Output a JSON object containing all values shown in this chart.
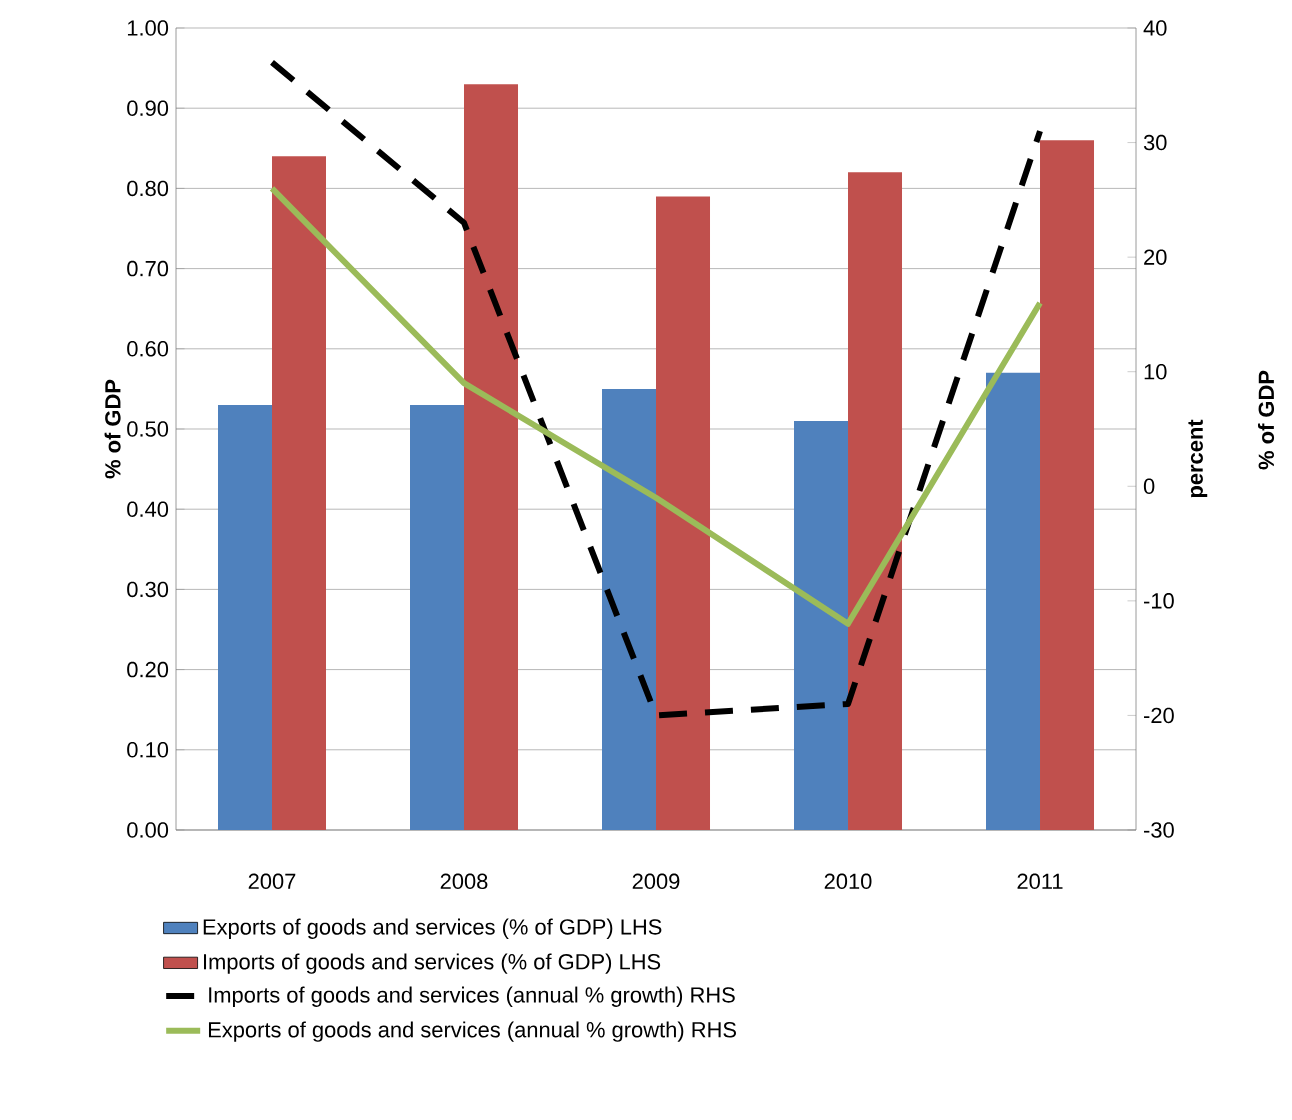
{
  "chart_data": {
    "type": "bar",
    "categories": [
      "2007",
      "2008",
      "2009",
      "2010",
      "2011"
    ],
    "ylabel": "% of GDP",
    "y2label": "percent",
    "annotations": [
      "% of GDP"
    ],
    "ylim": [
      0,
      1
    ],
    "yticks": [
      {
        "value": 0,
        "label": "0.00"
      },
      {
        "value": 0.1,
        "label": "0.10"
      },
      {
        "value": 0.2,
        "label": "0.20"
      },
      {
        "value": 0.3,
        "label": "0.30"
      },
      {
        "value": 0.4,
        "label": "0.40"
      },
      {
        "value": 0.5,
        "label": "0.50"
      },
      {
        "value": 0.6,
        "label": "0.60"
      },
      {
        "value": 0.7,
        "label": "0.70"
      },
      {
        "value": 0.8,
        "label": "0.80"
      },
      {
        "value": 0.9,
        "label": "0.90"
      },
      {
        "value": 1,
        "label": "1.00"
      }
    ],
    "y2lim": [
      -30,
      40
    ],
    "y2ticks": [
      -30,
      -20,
      -10,
      0,
      10,
      20,
      30,
      40
    ],
    "grid": "y",
    "legend": "bottom",
    "series": [
      {
        "name": "Exports of goods and services (% of GDP) LHS",
        "color": "#4f81bd",
        "values": [
          0.53,
          0.53,
          0.55,
          0.51,
          0.57
        ]
      },
      {
        "name": "Imports of goods and services (% of GDP) LHS",
        "color": "#c0504d",
        "values": [
          0.84,
          0.93,
          0.79,
          0.82,
          0.86
        ]
      },
      {
        "name": "Imports of goods and services (annual % growth) RHS",
        "type": "line",
        "axis": "y2",
        "line_style": "dashed",
        "color": "#000000",
        "values": [
          37,
          23,
          -20,
          -19,
          31
        ]
      },
      {
        "name": "Exports of goods and services (annual % growth) RHS",
        "type": "line",
        "axis": "y2",
        "line_style": "solid",
        "color": "#9bbb59",
        "values": [
          26,
          9,
          -1,
          -12,
          16
        ]
      }
    ]
  }
}
